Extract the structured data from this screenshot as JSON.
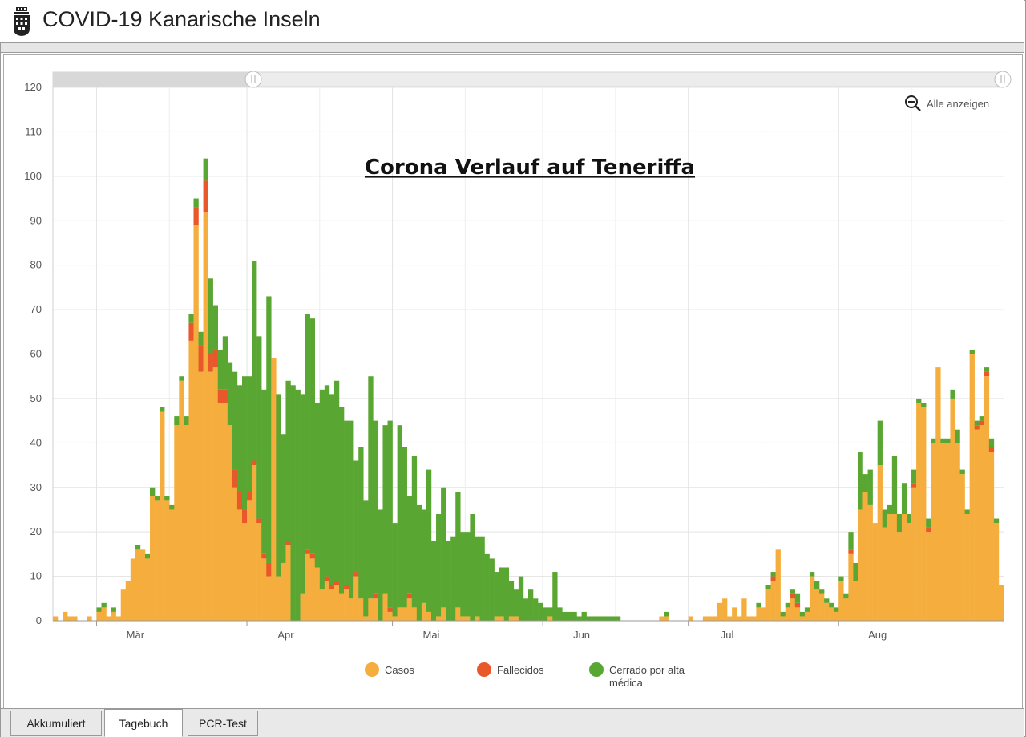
{
  "app": {
    "title": "COVID-19 Kanarische Inseln",
    "logo_icon": "coat-of-arms-icon"
  },
  "toolbar": {
    "zoom_label": "Alle anzeigen",
    "zoom_icon": "zoom-out-icon"
  },
  "tabs": [
    {
      "label": "Akkumuliert",
      "active": false
    },
    {
      "label": "Tagebuch",
      "active": true
    },
    {
      "label": "PCR-Test",
      "active": false
    }
  ],
  "chart_data": {
    "type": "bar",
    "stacked": true,
    "title": "Corona Verlauf auf Teneriffa",
    "xlabel": "",
    "ylabel": "",
    "ylim": [
      0,
      120
    ],
    "yticks": [
      0,
      10,
      20,
      30,
      40,
      50,
      60,
      70,
      80,
      90,
      100,
      110,
      120
    ],
    "x_start": "2020-02-21",
    "month_ticks": [
      {
        "label": "Mär",
        "date": "2020-03-01"
      },
      {
        "label": "Apr",
        "date": "2020-04-01"
      },
      {
        "label": "Mai",
        "date": "2020-05-01"
      },
      {
        "label": "Jun",
        "date": "2020-06-01"
      },
      {
        "label": "Jul",
        "date": "2020-07-01"
      },
      {
        "label": "Aug",
        "date": "2020-08-01"
      }
    ],
    "grid": true,
    "legend_position": "bottom",
    "series": [
      {
        "name": "Casos",
        "color": "#f5ae3d",
        "values": [
          1,
          0,
          2,
          1,
          1,
          0,
          0,
          1,
          0,
          2,
          3,
          1,
          2,
          1,
          7,
          9,
          14,
          16,
          16,
          14,
          28,
          27,
          47,
          27,
          25,
          44,
          54,
          44,
          63,
          89,
          56,
          92,
          56,
          57,
          49,
          49,
          44,
          30,
          25,
          22,
          27,
          35,
          22,
          14,
          10,
          59,
          10,
          13,
          17,
          0,
          0,
          6,
          15,
          14,
          12,
          7,
          9,
          7,
          8,
          6,
          7,
          5,
          10,
          5,
          1,
          5,
          5,
          0,
          6,
          2,
          1,
          3,
          3,
          5,
          3,
          0,
          4,
          2,
          0,
          1,
          3,
          0,
          0,
          3,
          1,
          1,
          0,
          1,
          0,
          0,
          0,
          1,
          1,
          0,
          1,
          1,
          0,
          0,
          0,
          0,
          0,
          0,
          1,
          0,
          0,
          0,
          0,
          0,
          0,
          0,
          0,
          0,
          0,
          0,
          0,
          0,
          0,
          0,
          0,
          0,
          0,
          0,
          0,
          0,
          0,
          1,
          1,
          0,
          0,
          0,
          0,
          1,
          0,
          0,
          1,
          1,
          1,
          4,
          5,
          1,
          3,
          1,
          5,
          1,
          1,
          3,
          3,
          7,
          9,
          16,
          1,
          3,
          5,
          3,
          1,
          2,
          10,
          7,
          6,
          4,
          3,
          2,
          9,
          5,
          15,
          9,
          25,
          29,
          26,
          22,
          35,
          21,
          24,
          24,
          20,
          24,
          22,
          30,
          49,
          48,
          20,
          40,
          57,
          40,
          40,
          50,
          40,
          33,
          24,
          60,
          43,
          44,
          55,
          38,
          22,
          8
        ],
        "color_note": ""
      },
      {
        "name": "Fallecidos",
        "color": "#e9582a",
        "values": [
          0,
          0,
          0,
          0,
          0,
          0,
          0,
          0,
          0,
          0,
          0,
          0,
          0,
          0,
          0,
          0,
          0,
          0,
          0,
          0,
          0,
          0,
          0,
          0,
          0,
          0,
          0,
          0,
          4,
          4,
          6,
          7,
          4,
          4,
          3,
          3,
          0,
          4,
          4,
          3,
          2,
          1,
          1,
          1,
          3,
          0,
          0,
          0,
          1,
          0,
          0,
          0,
          1,
          1,
          0,
          0,
          1,
          1,
          1,
          0,
          1,
          0,
          1,
          0,
          0,
          0,
          1,
          0,
          0,
          1,
          0,
          0,
          0,
          1,
          0,
          0,
          0,
          0,
          0,
          0,
          0,
          0,
          0,
          0,
          0,
          0,
          0,
          0,
          0,
          0,
          0,
          0,
          0,
          0,
          0,
          0,
          0,
          0,
          0,
          0,
          0,
          0,
          0,
          0,
          0,
          0,
          0,
          0,
          0,
          0,
          0,
          0,
          0,
          0,
          0,
          0,
          0,
          0,
          0,
          0,
          0,
          0,
          0,
          0,
          0,
          0,
          0,
          0,
          0,
          0,
          0,
          0,
          0,
          0,
          0,
          0,
          0,
          0,
          0,
          0,
          0,
          0,
          0,
          0,
          0,
          0,
          0,
          0,
          1,
          0,
          0,
          0,
          1,
          1,
          0,
          0,
          0,
          0,
          0,
          0,
          0,
          0,
          0,
          0,
          1,
          0,
          0,
          0,
          0,
          0,
          0,
          0,
          0,
          0,
          0,
          0,
          0,
          1,
          0,
          0,
          1,
          0,
          0,
          0,
          0,
          0,
          0,
          0,
          0,
          0,
          1,
          1,
          1,
          1,
          0,
          0
        ]
      },
      {
        "name": "Cerrado por alta médica",
        "color": "#5aa632",
        "values": [
          0,
          0,
          0,
          0,
          0,
          0,
          0,
          0,
          0,
          1,
          1,
          0,
          1,
          0,
          0,
          0,
          0,
          1,
          0,
          1,
          2,
          1,
          1,
          1,
          1,
          2,
          1,
          2,
          2,
          2,
          3,
          5,
          17,
          10,
          9,
          12,
          14,
          22,
          24,
          30,
          26,
          45,
          41,
          37,
          60,
          0,
          41,
          29,
          36,
          53,
          52,
          45,
          53,
          53,
          37,
          45,
          43,
          43,
          45,
          42,
          37,
          40,
          25,
          34,
          26,
          50,
          39,
          25,
          38,
          42,
          21,
          41,
          36,
          22,
          34,
          26,
          21,
          32,
          18,
          23,
          27,
          18,
          19,
          26,
          19,
          19,
          24,
          18,
          19,
          15,
          14,
          10,
          11,
          12,
          8,
          6,
          10,
          5,
          7,
          5,
          4,
          3,
          2,
          11,
          3,
          2,
          2,
          2,
          1,
          2,
          1,
          1,
          1,
          1,
          1,
          1,
          1,
          0,
          0,
          0,
          0,
          0,
          0,
          0,
          0,
          0,
          1,
          0,
          0,
          0,
          0,
          0,
          0,
          0,
          0,
          0,
          0,
          0,
          0,
          0,
          0,
          0,
          0,
          0,
          0,
          1,
          0,
          1,
          1,
          0,
          1,
          1,
          1,
          2,
          1,
          1,
          1,
          2,
          1,
          1,
          1,
          1,
          1,
          1,
          4,
          4,
          13,
          4,
          8,
          0,
          10,
          4,
          2,
          13,
          4,
          7,
          2,
          3,
          1,
          1,
          2,
          1,
          0,
          1,
          1,
          2,
          3,
          1,
          1,
          1,
          1,
          1,
          1,
          2,
          1,
          0,
          1,
          1,
          0,
          0
        ]
      }
    ]
  }
}
